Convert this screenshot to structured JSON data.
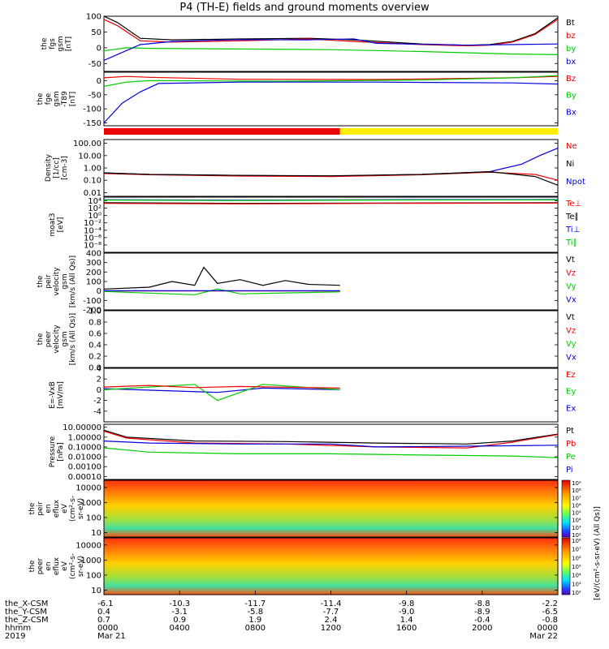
{
  "title": "P4 (TH-E) fields and ground moments overview",
  "colors": {
    "black": "#000000",
    "red": "#ee0000",
    "green": "#00cc00",
    "blue": "#0000dd",
    "yellow": "#ffee00"
  },
  "chart_data": [
    {
      "id": "fgs",
      "type": "line",
      "ylabel": [
        "the",
        "fgs",
        "gsm",
        "[nT]"
      ],
      "ylim": [
        -75,
        100
      ],
      "ticks": [
        {
          "v": 100,
          "t": "100"
        },
        {
          "v": 50,
          "t": "50"
        },
        {
          "v": 0,
          "t": "0"
        },
        {
          "v": -50,
          "t": "-50"
        }
      ],
      "legend": [
        {
          "name": "Bt",
          "color": "black"
        },
        {
          "name": "bz",
          "color": "red"
        },
        {
          "name": "by",
          "color": "green"
        },
        {
          "name": "bx",
          "color": "blue"
        }
      ],
      "series": [
        {
          "name": "Bt",
          "color": "black",
          "x": [
            0,
            0.03,
            0.08,
            0.15,
            0.3,
            0.45,
            0.55,
            0.7,
            0.8,
            0.85,
            0.9,
            0.95,
            1
          ],
          "y": [
            100,
            80,
            30,
            25,
            28,
            30,
            25,
            12,
            8,
            10,
            20,
            45,
            95
          ]
        },
        {
          "name": "bz",
          "color": "red",
          "x": [
            0,
            0.03,
            0.08,
            0.15,
            0.3,
            0.45,
            0.55,
            0.7,
            0.8,
            0.85,
            0.9,
            0.95,
            1
          ],
          "y": [
            90,
            70,
            22,
            18,
            22,
            28,
            20,
            10,
            6,
            8,
            18,
            42,
            90
          ]
        },
        {
          "name": "by",
          "color": "green",
          "x": [
            0,
            0.05,
            0.1,
            0.3,
            0.5,
            0.7,
            0.9,
            1
          ],
          "y": [
            -10,
            0,
            -2,
            -4,
            -6,
            -12,
            -20,
            -22
          ]
        },
        {
          "name": "bx",
          "color": "blue",
          "x": [
            0,
            0.08,
            0.15,
            0.3,
            0.45,
            0.55,
            0.6,
            0.8,
            1
          ],
          "y": [
            -40,
            10,
            20,
            26,
            25,
            28,
            14,
            8,
            12
          ]
        }
      ]
    },
    {
      "id": "fge",
      "type": "line",
      "ylabel": [
        "the",
        "fge",
        "gsm",
        "-T89",
        "[nT]"
      ],
      "ylim": [
        -160,
        30
      ],
      "ticks": [
        {
          "v": 0,
          "t": "0"
        },
        {
          "v": -50,
          "t": "-50"
        },
        {
          "v": -100,
          "t": "-100"
        },
        {
          "v": -150,
          "t": "-150"
        }
      ],
      "legend": [
        {
          "name": "Bz",
          "color": "red"
        },
        {
          "name": "By",
          "color": "green"
        },
        {
          "name": "Bx",
          "color": "blue"
        }
      ],
      "series": [
        {
          "name": "Bz",
          "color": "red",
          "x": [
            0,
            0.05,
            0.1,
            0.3,
            0.6,
            0.9,
            1
          ],
          "y": [
            10,
            15,
            12,
            5,
            4,
            10,
            15
          ]
        },
        {
          "name": "By",
          "color": "green",
          "x": [
            0,
            0.05,
            0.1,
            0.4,
            0.7,
            0.9,
            1
          ],
          "y": [
            -20,
            -5,
            0,
            -2,
            2,
            10,
            18
          ]
        },
        {
          "name": "Bx",
          "color": "blue",
          "x": [
            0,
            0.04,
            0.08,
            0.12,
            0.3,
            0.6,
            0.9,
            1
          ],
          "y": [
            -150,
            -80,
            -40,
            -10,
            -5,
            -5,
            -8,
            -12
          ]
        }
      ]
    },
    {
      "id": "mode",
      "type": "bar",
      "segments": [
        {
          "x": [
            0,
            0.52
          ],
          "color": "red"
        },
        {
          "x": [
            0.52,
            1
          ],
          "color": "yellow"
        }
      ]
    },
    {
      "id": "density",
      "type": "line",
      "log": true,
      "ylabel": [
        "Density",
        "[1/cc]",
        "[cm-3]"
      ],
      "ylim": [
        0.005,
        200
      ],
      "ticks": [
        {
          "v": 100,
          "t": "100.00"
        },
        {
          "v": 10,
          "t": "10.00"
        },
        {
          "v": 1,
          "t": "1.00"
        },
        {
          "v": 0.1,
          "t": "0.10"
        },
        {
          "v": 0.01,
          "t": "0.01"
        }
      ],
      "legend": [
        {
          "name": "Ne",
          "color": "red"
        },
        {
          "name": "Ni",
          "color": "black"
        },
        {
          "name": "Npot",
          "color": "blue"
        }
      ],
      "series": [
        {
          "name": "Npot",
          "color": "blue",
          "x": [
            0,
            0.1,
            0.3,
            0.5,
            0.7,
            0.85,
            0.92,
            0.96,
            1
          ],
          "y": [
            0.4,
            0.3,
            0.25,
            0.22,
            0.3,
            0.5,
            2,
            10,
            40
          ]
        },
        {
          "name": "Ne",
          "color": "red",
          "x": [
            0,
            0.1,
            0.3,
            0.5,
            0.7,
            0.85,
            0.95,
            1
          ],
          "y": [
            0.35,
            0.28,
            0.22,
            0.2,
            0.28,
            0.45,
            0.3,
            0.1
          ]
        },
        {
          "name": "Ni",
          "color": "black",
          "x": [
            0,
            0.1,
            0.3,
            0.5,
            0.7,
            0.85,
            0.95,
            1
          ],
          "y": [
            0.4,
            0.3,
            0.25,
            0.23,
            0.3,
            0.5,
            0.2,
            0.04
          ]
        }
      ]
    },
    {
      "id": "moat3",
      "type": "line",
      "log": true,
      "ylabel": [
        "moat3",
        "[eV]"
      ],
      "ylim": [
        1e-10,
        100000.0
      ],
      "ticks": [
        {
          "v": 10000.0,
          "t": "10⁴"
        },
        {
          "v": 100.0,
          "t": "10²"
        },
        {
          "v": 1,
          "t": "10⁰"
        },
        {
          "v": 0.01,
          "t": "10⁻²"
        },
        {
          "v": 0.0001,
          "t": "10⁻⁴"
        },
        {
          "v": 1e-06,
          "t": "10⁻⁶"
        },
        {
          "v": 1e-08,
          "t": "10⁻⁸"
        }
      ],
      "legend": [
        {
          "name": "Te⊥",
          "color": "red"
        },
        {
          "name": "Te∥",
          "color": "black"
        },
        {
          "name": "Ti⊥",
          "color": "blue"
        },
        {
          "name": "Ti∥",
          "color": "green"
        }
      ],
      "series": [
        {
          "name": "Ti",
          "color": "blue",
          "x": [
            0,
            0.3,
            0.6,
            1
          ],
          "y": [
            20000,
            15000,
            20000,
            22000
          ]
        },
        {
          "name": "Ti∥",
          "color": "green",
          "x": [
            0,
            0.3,
            0.6,
            1
          ],
          "y": [
            16000,
            12000,
            16000,
            18000
          ]
        },
        {
          "name": "Te∥",
          "color": "black",
          "x": [
            0,
            0.3,
            0.6,
            1
          ],
          "y": [
            3000,
            2000,
            2500,
            3000
          ]
        },
        {
          "name": "Te⊥",
          "color": "red",
          "x": [
            0,
            0.3,
            0.6,
            1
          ],
          "y": [
            2000,
            1500,
            2000,
            2500
          ]
        }
      ]
    },
    {
      "id": "peir",
      "type": "line",
      "ylabel": [
        "the",
        "peir",
        "velocity",
        "gsm",
        "[km/s (All Qs)]"
      ],
      "ylim": [
        -200,
        400
      ],
      "ticks": [
        {
          "v": 400,
          "t": "400"
        },
        {
          "v": 300,
          "t": "300"
        },
        {
          "v": 200,
          "t": "200"
        },
        {
          "v": 100,
          "t": "100"
        },
        {
          "v": 0,
          "t": "0"
        },
        {
          "v": -100,
          "t": "-100"
        },
        {
          "v": -200,
          "t": "-200"
        }
      ],
      "legend": [
        {
          "name": "Vt",
          "color": "black"
        },
        {
          "name": "Vz",
          "color": "red"
        },
        {
          "name": "Vy",
          "color": "green"
        },
        {
          "name": "Vx",
          "color": "blue"
        }
      ],
      "series": [
        {
          "name": "Vt",
          "color": "black",
          "x": [
            0,
            0.1,
            0.15,
            0.2,
            0.22,
            0.25,
            0.3,
            0.35,
            0.4,
            0.45,
            0.52
          ],
          "y": [
            20,
            40,
            100,
            60,
            250,
            80,
            120,
            60,
            110,
            70,
            60
          ]
        },
        {
          "name": "Vz",
          "color": "red",
          "x": [
            0,
            0.52
          ],
          "y": [
            0,
            0
          ]
        },
        {
          "name": "Vy",
          "color": "green",
          "x": [
            0,
            0.2,
            0.25,
            0.3,
            0.52
          ],
          "y": [
            -5,
            -40,
            20,
            -30,
            -10
          ]
        },
        {
          "name": "Vx",
          "color": "blue",
          "x": [
            0,
            0.52
          ],
          "y": [
            2,
            2
          ]
        }
      ]
    },
    {
      "id": "peer",
      "type": "line",
      "ylabel": [
        "the",
        "peer",
        "velocity",
        "gsm",
        "[km/s (All Qs)]"
      ],
      "ylim": [
        -200,
        1
      ],
      "ticks": [
        {
          "v": 1,
          "t": "1.0"
        },
        {
          "v": 0.8,
          "t": "0.8"
        },
        {
          "v": 0.6,
          "t": "0.6"
        },
        {
          "v": 0.4,
          "t": "0.4"
        },
        {
          "v": 0.2,
          "t": "0.2"
        },
        {
          "v": 0,
          "t": "0.0"
        }
      ],
      "legend": [
        {
          "name": "Vt",
          "color": "black"
        },
        {
          "name": "Vz",
          "color": "red"
        },
        {
          "name": "Vy",
          "color": "green"
        },
        {
          "name": "Vx",
          "color": "blue"
        }
      ],
      "series": []
    },
    {
      "id": "exb",
      "type": "line",
      "ylabel": [
        "E=-VxB",
        "[mV/m]"
      ],
      "ylim": [
        -6,
        4
      ],
      "ticks": [
        {
          "v": 4,
          "t": "4"
        },
        {
          "v": 2,
          "t": "2"
        },
        {
          "v": 0,
          "t": "0"
        },
        {
          "v": -2,
          "t": "-2"
        },
        {
          "v": -4,
          "t": "-4"
        }
      ],
      "legend": [
        {
          "name": "Ez",
          "color": "red"
        },
        {
          "name": "Ey",
          "color": "green"
        },
        {
          "name": "Ex",
          "color": "blue"
        }
      ],
      "series": [
        {
          "name": "Ex",
          "color": "blue",
          "x": [
            0,
            0.25,
            0.35,
            0.52
          ],
          "y": [
            0.2,
            -0.5,
            0.3,
            0
          ]
        },
        {
          "name": "Ey",
          "color": "green",
          "x": [
            0,
            0.2,
            0.25,
            0.35,
            0.52
          ],
          "y": [
            0,
            1,
            -2,
            1,
            0
          ]
        },
        {
          "name": "Ez",
          "color": "red",
          "x": [
            0,
            0.1,
            0.2,
            0.3,
            0.52
          ],
          "y": [
            0.5,
            0.8,
            0.4,
            0.6,
            0.3
          ]
        }
      ]
    },
    {
      "id": "pressure",
      "type": "line",
      "log": true,
      "ylabel": [
        "Pressure",
        "[nPa]"
      ],
      "ylim": [
        5e-05,
        20
      ],
      "ticks": [
        {
          "v": 10,
          "t": "10.00000"
        },
        {
          "v": 1,
          "t": "1.00000"
        },
        {
          "v": 0.1,
          "t": "0.10000"
        },
        {
          "v": 0.01,
          "t": "0.01000"
        },
        {
          "v": 0.001,
          "t": "0.00100"
        },
        {
          "v": 0.0001,
          "t": "0.00010"
        },
        {
          "v": 1e-05,
          "t": "0.00001"
        }
      ],
      "legend": [
        {
          "name": "Pt",
          "color": "black"
        },
        {
          "name": "Pb",
          "color": "red"
        },
        {
          "name": "Pe",
          "color": "green"
        },
        {
          "name": "Pi",
          "color": "blue"
        }
      ],
      "series": [
        {
          "name": "Pt",
          "color": "black",
          "x": [
            0,
            0.05,
            0.2,
            0.4,
            0.6,
            0.8,
            0.9,
            1
          ],
          "y": [
            5,
            1,
            0.4,
            0.35,
            0.25,
            0.2,
            0.4,
            2
          ]
        },
        {
          "name": "Pb",
          "color": "red",
          "x": [
            0,
            0.05,
            0.2,
            0.4,
            0.6,
            0.8,
            0.9,
            1
          ],
          "y": [
            4,
            0.8,
            0.25,
            0.2,
            0.1,
            0.08,
            0.3,
            1.8
          ]
        },
        {
          "name": "Pi",
          "color": "blue",
          "x": [
            0,
            0.1,
            0.3,
            0.5,
            0.6,
            0.8,
            1
          ],
          "y": [
            0.4,
            0.25,
            0.2,
            0.2,
            0.1,
            0.12,
            0.15
          ]
        },
        {
          "name": "Pe",
          "color": "green",
          "x": [
            0,
            0.1,
            0.3,
            0.5,
            0.7,
            0.9,
            1
          ],
          "y": [
            0.08,
            0.03,
            0.02,
            0.02,
            0.015,
            0.012,
            0.008
          ]
        }
      ]
    },
    {
      "id": "peir_eflux",
      "type": "heatmap",
      "log": true,
      "ylabel": [
        "the",
        "peir",
        "en",
        "eflux",
        "eV",
        "(cm²-s-",
        "sr-eV)"
      ],
      "ylim": [
        5,
        30000
      ],
      "ticks": [
        {
          "v": 10000,
          "t": "10000"
        },
        {
          "v": 1000,
          "t": "1000"
        },
        {
          "v": 100,
          "t": "100"
        },
        {
          "v": 10,
          "t": "10"
        }
      ],
      "colorbar": {
        "label": "[eV/(cm²-s-sr-eV) (All Qs)]",
        "ticks": [
          "10⁹",
          "10⁸",
          "10⁷",
          "10⁶",
          "10⁵",
          "10⁴",
          "10³",
          "10²"
        ]
      }
    },
    {
      "id": "peer_eflux",
      "type": "heatmap",
      "log": true,
      "ylabel": [
        "the",
        "peer",
        "en",
        "eflux",
        "eV",
        "(cm²-s-",
        "sr-eV)"
      ],
      "ylim": [
        5,
        30000
      ],
      "ticks": [
        {
          "v": 10000,
          "t": "10000"
        },
        {
          "v": 1000,
          "t": "1000"
        },
        {
          "v": 100,
          "t": "100"
        },
        {
          "v": 10,
          "t": "10"
        }
      ],
      "colorbar": {
        "label": "[eV/(cm²-s-sr-eV) (All Qs)]",
        "ticks": [
          "10⁸",
          "10⁷",
          "10⁶",
          "10⁵",
          "10⁴",
          "10³",
          "10²"
        ]
      }
    }
  ],
  "xaxis": {
    "rows": [
      {
        "label": "the_X-CSM",
        "values": [
          "-6.1",
          "-10.3",
          "-11.7",
          "-11.4",
          "-9.8",
          "-8.8",
          "-2.2"
        ]
      },
      {
        "label": "the_Y-CSM",
        "values": [
          "0.4",
          "-3.1",
          "-5.8",
          "-7.7",
          "-9.0",
          "-8.9",
          "-6.5"
        ]
      },
      {
        "label": "the_Z-CSM",
        "values": [
          "0.7",
          "0.9",
          "1.9",
          "2.4",
          "1.4",
          "-0.4",
          "-0.8"
        ]
      },
      {
        "label": "hhmm",
        "values": [
          "0000",
          "0400",
          "0800",
          "1200",
          "1600",
          "2000",
          "0000"
        ]
      },
      {
        "label": "2019",
        "values": [
          "Mar 21",
          "",
          "",
          "",
          "",
          "",
          "Mar 22"
        ]
      }
    ]
  }
}
